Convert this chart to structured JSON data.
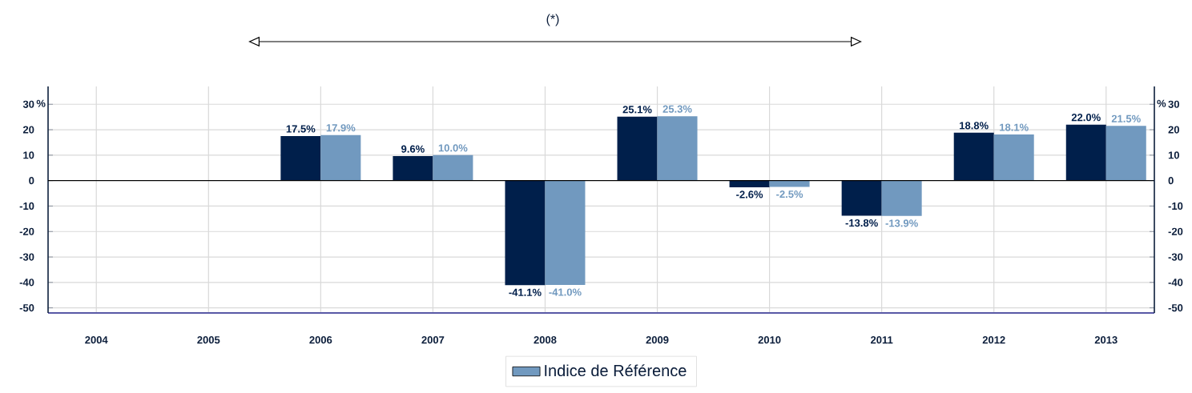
{
  "chart_data": {
    "type": "bar",
    "categories": [
      "2004",
      "2005",
      "2006",
      "2007",
      "2008",
      "2009",
      "2010",
      "2011",
      "2012",
      "2013"
    ],
    "series": [
      {
        "color": "#001f4b",
        "values": [
          null,
          null,
          17.5,
          9.6,
          -41.1,
          25.1,
          -2.6,
          -13.8,
          18.8,
          22.0
        ],
        "value_labels": [
          null,
          null,
          "17.5%",
          "9.6%",
          "-41.1%",
          "25.1%",
          "-2.6%",
          "-13.8%",
          "18.8%",
          "22.0%"
        ]
      },
      {
        "name": "Indice de Référence",
        "color": "#7199bf",
        "values": [
          null,
          null,
          17.9,
          10.0,
          -41.0,
          25.3,
          -2.5,
          -13.9,
          18.1,
          21.5
        ],
        "value_labels": [
          null,
          null,
          "17.9%",
          "10.0%",
          "-41.0%",
          "25.3%",
          "-2.5%",
          "-13.9%",
          "18.1%",
          "21.5%"
        ]
      }
    ],
    "ylabel": "%",
    "y2label": "%",
    "ylim": [
      -52,
      37
    ],
    "yticks": [
      -50,
      -40,
      -30,
      -20,
      -10,
      0,
      10,
      20,
      30
    ],
    "y2lim": [
      -52,
      37
    ],
    "y2ticks": [
      -50,
      -40,
      -30,
      -20,
      -10,
      0,
      10,
      20,
      30
    ],
    "grid": true,
    "legend": "bottom",
    "annotations": [
      "(*)"
    ]
  }
}
